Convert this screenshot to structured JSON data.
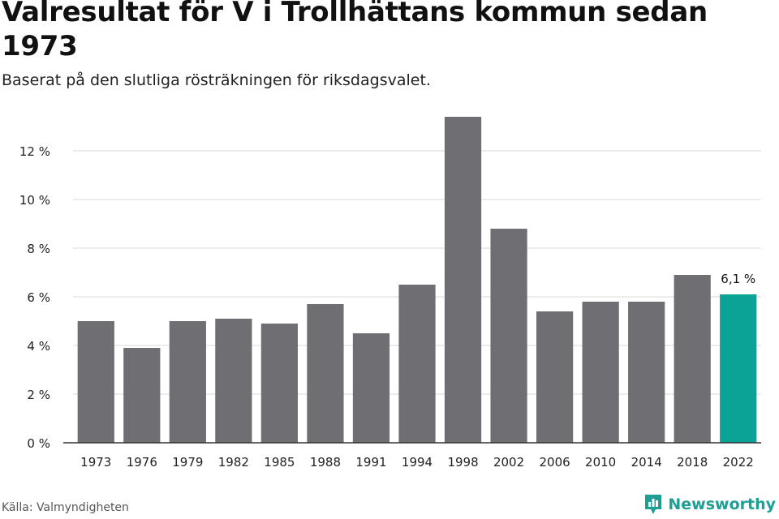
{
  "header": {
    "title": "Valresultat för V i Trollhättans kommun sedan 1973",
    "subtitle": "Baserat på den slutliga rösträkningen för riksdagsvalet."
  },
  "footer": {
    "source": "Källa: Valmyndigheten",
    "brand": "Newsworthy",
    "brand_color": "#1f9e95"
  },
  "colors": {
    "bar": "#6f6e73",
    "highlight": "#0aa396",
    "grid": "#d9d9d9",
    "axis": "#333333"
  },
  "chart_data": {
    "type": "bar",
    "categories": [
      "1973",
      "1976",
      "1979",
      "1982",
      "1985",
      "1988",
      "1991",
      "1994",
      "1998",
      "2002",
      "2006",
      "2010",
      "2014",
      "2018",
      "2022"
    ],
    "values": [
      5.0,
      3.9,
      5.0,
      5.1,
      4.9,
      5.7,
      4.5,
      6.5,
      13.4,
      8.8,
      5.4,
      5.8,
      5.8,
      6.9,
      6.1
    ],
    "highlight_index": 14,
    "data_labels": [
      {
        "index": 14,
        "text": "6,1 %"
      }
    ],
    "y_ticks": [
      0,
      2,
      4,
      6,
      8,
      10,
      12
    ],
    "y_tick_labels": [
      "0 %",
      "2 %",
      "4 %",
      "6 %",
      "8 %",
      "10 %",
      "12 %"
    ],
    "ylim": [
      0,
      13.4
    ],
    "grid": true,
    "legend": "none"
  }
}
